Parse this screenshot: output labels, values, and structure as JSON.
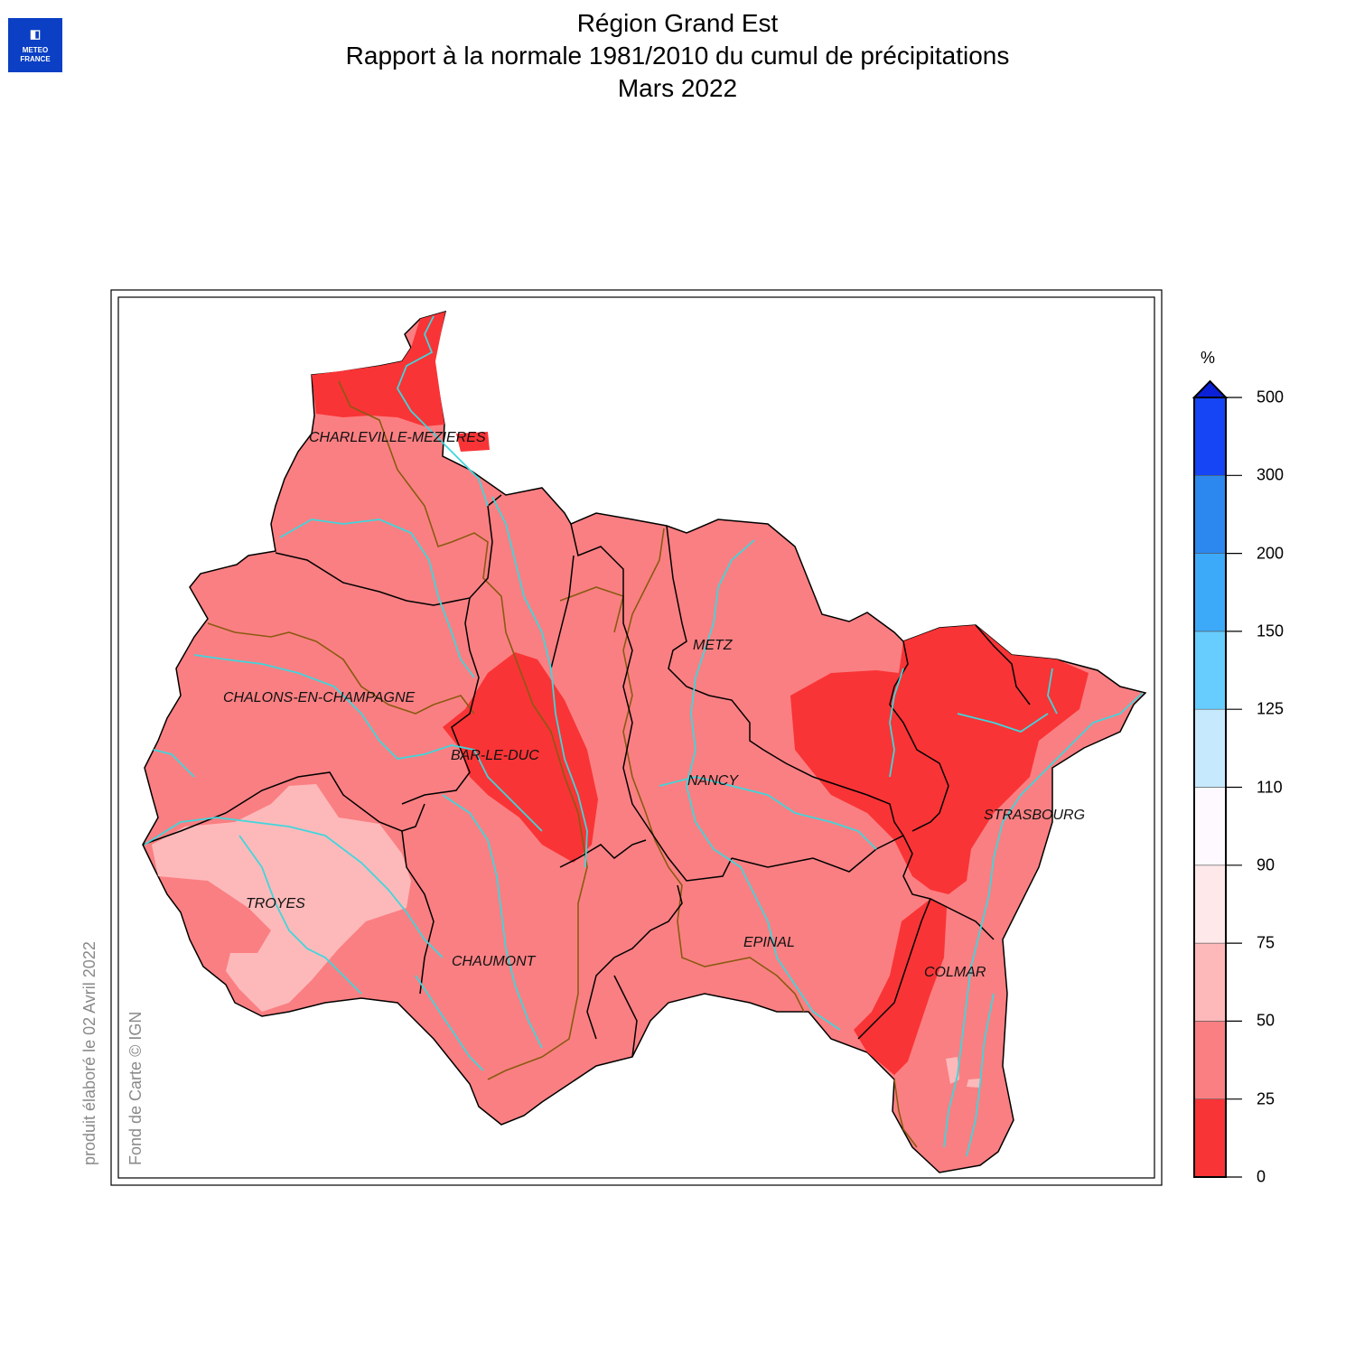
{
  "header": {
    "logo_line1": "METEO",
    "logo_line2": "FRANCE",
    "title_line1": "Région Grand Est",
    "title_line2": "Rapport à la normale 1981/2010 du cumul de précipitations",
    "title_line3": "Mars 2022"
  },
  "credits": {
    "produced": "produit élaboré le 02 Avril 2022",
    "basemap": "Fond de Carte © IGN"
  },
  "cities": [
    {
      "name": "CHARLEVILLE-MEZIERES"
    },
    {
      "name": "CHALONS-EN-CHAMPAGNE"
    },
    {
      "name": "BAR-LE-DUC"
    },
    {
      "name": "METZ"
    },
    {
      "name": "NANCY"
    },
    {
      "name": "TROYES"
    },
    {
      "name": "CHAUMONT"
    },
    {
      "name": "EPINAL"
    },
    {
      "name": "STRASBOURG"
    },
    {
      "name": "COLMAR"
    }
  ],
  "legend": {
    "unit": "%",
    "ticks": [
      "0",
      "25",
      "50",
      "75",
      "90",
      "110",
      "125",
      "150",
      "200",
      "300",
      "500"
    ],
    "classes": [
      {
        "from": 0,
        "to": 25,
        "color": "#f93436"
      },
      {
        "from": 25,
        "to": 50,
        "color": "#fa7f82"
      },
      {
        "from": 50,
        "to": 75,
        "color": "#fdb9ba"
      },
      {
        "from": 75,
        "to": 90,
        "color": "#fee8e9"
      },
      {
        "from": 90,
        "to": 110,
        "color": "#fef9fe"
      },
      {
        "from": 110,
        "to": 125,
        "color": "#c6e9fe"
      },
      {
        "from": 125,
        "to": 150,
        "color": "#66cdfe"
      },
      {
        "from": 150,
        "to": 200,
        "color": "#3da9f9"
      },
      {
        "from": 200,
        "to": 300,
        "color": "#2c88ef"
      },
      {
        "from": 300,
        "to": 500,
        "color": "#1545f5"
      }
    ],
    "overflow_color": "#0b21d8"
  },
  "colors": {
    "river": "#3fd6dc",
    "basin_boundary": "#8a5a12",
    "department_boundary": "#000000"
  }
}
